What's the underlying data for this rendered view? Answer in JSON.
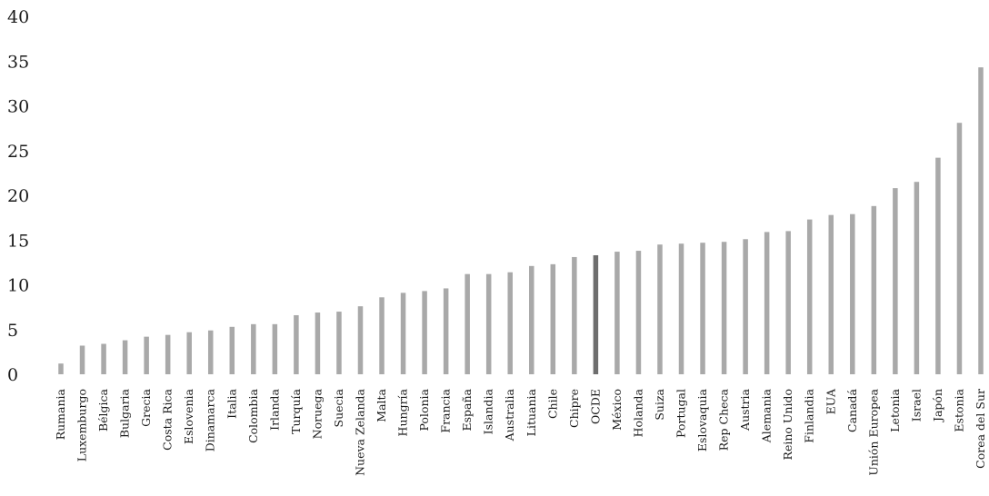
{
  "chart_data": {
    "type": "bar",
    "title": "",
    "xlabel": "",
    "ylabel": "",
    "ylim": [
      0,
      40
    ],
    "yticks": [
      "0",
      "5",
      "10",
      "15",
      "20",
      "25",
      "30",
      "35",
      "40"
    ],
    "grid": false,
    "categories": [
      "Rumania",
      "Luxemburgo",
      "Bélgica",
      "Bulgaria",
      "Grecia",
      "Costa Rica",
      "Eslovenia",
      "Dinamarca",
      "Italia",
      "Colombia",
      "Irlanda",
      "Turquía",
      "Noruega",
      "Suecia",
      "Nueva Zelanda",
      "Malta",
      "Hungría",
      "Polonia",
      "Francia",
      "España",
      "Islandia",
      "Australia",
      "Lituania",
      "Chile",
      "Chipre",
      "OCDE",
      "México",
      "Holanda",
      "Suiza",
      "Portugal",
      "Eslovaquia",
      "Rep Checa",
      "Austria",
      "Alemania",
      "Reino Unido",
      "Finlandia",
      "EUA",
      "Canadá",
      "Unión Europea",
      "Letonia",
      "Israel",
      "Japón",
      "Estonia",
      "Corea del Sur"
    ],
    "values": [
      1.2,
      3.2,
      3.4,
      3.8,
      4.2,
      4.4,
      4.7,
      4.9,
      5.3,
      5.6,
      5.6,
      6.6,
      6.9,
      7.0,
      7.6,
      8.6,
      9.1,
      9.3,
      9.6,
      11.2,
      11.2,
      11.4,
      12.1,
      12.3,
      13.1,
      13.3,
      13.7,
      13.8,
      14.5,
      14.6,
      14.7,
      14.8,
      15.1,
      15.9,
      16.0,
      17.3,
      17.8,
      17.9,
      18.8,
      20.8,
      21.5,
      24.2,
      28.1,
      34.3
    ],
    "highlight": "OCDE",
    "colors": {
      "bar": "#a9a9a9",
      "highlight": "#6e6e6e",
      "axis_text": "#1a1a1a"
    }
  }
}
